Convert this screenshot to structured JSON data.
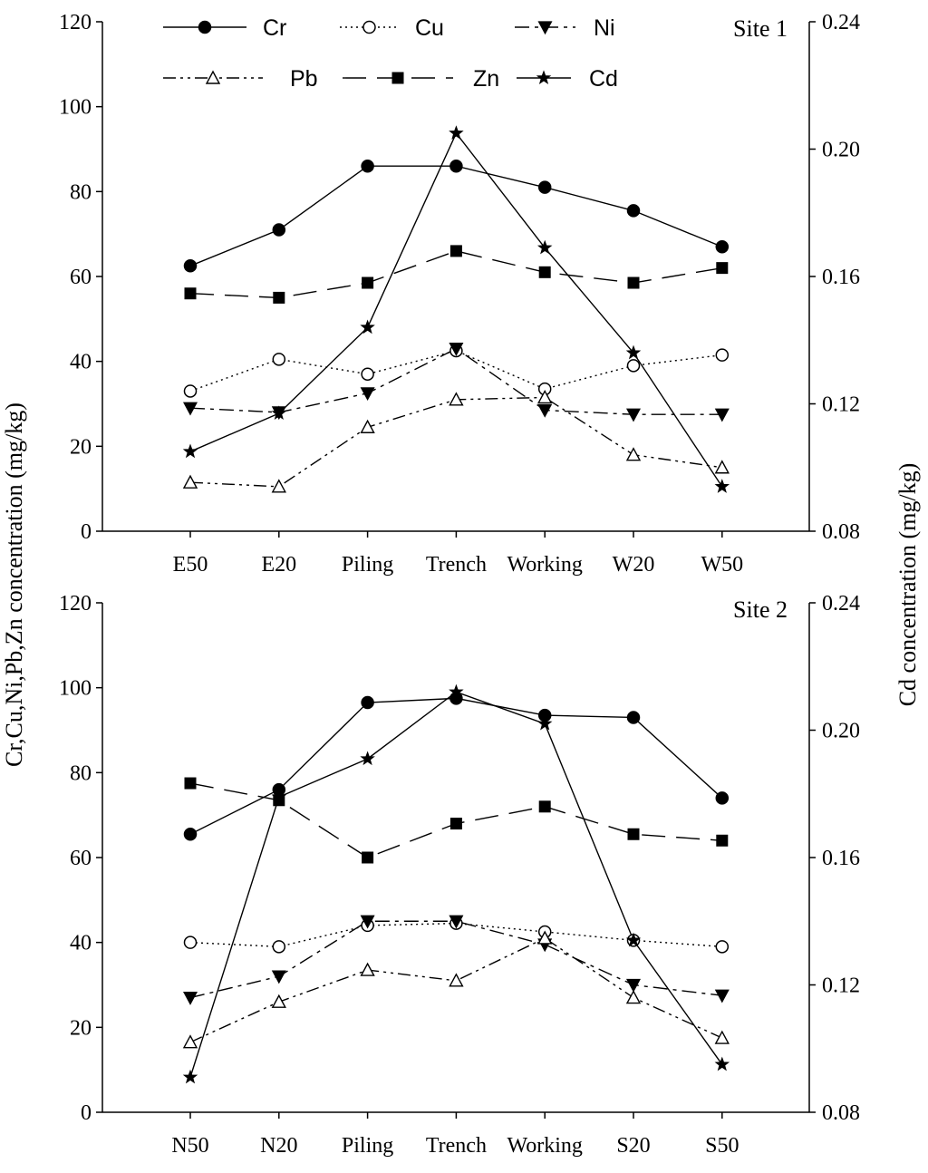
{
  "chart_data": [
    {
      "type": "line",
      "title": "Site 1",
      "categories": [
        "E50",
        "E20",
        "Piling",
        "Trench",
        "Working",
        "W20",
        "W50"
      ],
      "ylabel": "Cr,Cu,Ni,Pb,Zn concentration (mg/kg)",
      "y2label": "Cd concentration (mg/kg)",
      "ylim": [
        0,
        120
      ],
      "yticks": [
        0,
        20,
        40,
        60,
        80,
        100,
        120
      ],
      "y2lim": [
        0.08,
        0.24
      ],
      "y2ticks": [
        "0.08",
        "0.12",
        "0.16",
        "0.20",
        "0.24"
      ],
      "grid": false,
      "series": [
        {
          "name": "Cr",
          "axis": "left",
          "values": [
            62.5,
            71,
            86,
            86,
            81,
            75.5,
            67
          ]
        },
        {
          "name": "Cu",
          "axis": "left",
          "values": [
            33,
            40.5,
            37,
            42.5,
            33.5,
            39,
            41.5
          ]
        },
        {
          "name": "Ni",
          "axis": "left",
          "values": [
            29,
            28,
            32.5,
            43,
            28.5,
            27.5,
            27.5
          ]
        },
        {
          "name": "Pb",
          "axis": "left",
          "values": [
            11.5,
            10.5,
            24.5,
            31,
            31.5,
            18,
            15
          ]
        },
        {
          "name": "Zn",
          "axis": "left",
          "values": [
            56,
            55,
            58.5,
            66,
            61,
            58.5,
            62
          ]
        },
        {
          "name": "Cd",
          "axis": "right",
          "values": [
            0.105,
            0.117,
            0.144,
            0.205,
            0.169,
            0.136,
            0.094
          ]
        }
      ]
    },
    {
      "type": "line",
      "title": "Site 2",
      "categories": [
        "N50",
        "N20",
        "Piling",
        "Trench",
        "Working",
        "S20",
        "S50"
      ],
      "ylabel": "Cr,Cu,Ni,Pb,Zn concentration (mg/kg)",
      "y2label": "Cd concentration (mg/kg)",
      "ylim": [
        0,
        120
      ],
      "yticks": [
        0,
        20,
        40,
        60,
        80,
        100,
        120
      ],
      "y2lim": [
        0.08,
        0.24
      ],
      "y2ticks": [
        "0.08",
        "0.12",
        "0.16",
        "0.20",
        "0.24"
      ],
      "grid": false,
      "series": [
        {
          "name": "Cr",
          "axis": "left",
          "values": [
            65.5,
            76,
            96.5,
            97.5,
            93.5,
            93,
            74
          ]
        },
        {
          "name": "Cu",
          "axis": "left",
          "values": [
            40,
            39,
            44,
            44.5,
            42.5,
            40.5,
            39
          ]
        },
        {
          "name": "Ni",
          "axis": "left",
          "values": [
            27,
            32,
            45,
            45,
            39.5,
            30,
            27.5
          ]
        },
        {
          "name": "Pb",
          "axis": "left",
          "values": [
            16.5,
            26,
            33.5,
            31,
            41,
            27,
            17.5
          ]
        },
        {
          "name": "Zn",
          "axis": "left",
          "values": [
            77.5,
            73.5,
            60,
            68,
            72,
            65.5,
            64
          ]
        },
        {
          "name": "Cd",
          "axis": "right",
          "values": [
            0.091,
            0.179,
            0.191,
            0.212,
            0.202,
            0.134,
            0.095
          ]
        }
      ]
    }
  ],
  "legend": {
    "placement": "top",
    "entries": [
      "Cr",
      "Cu",
      "Ni",
      "Pb",
      "Zn",
      "Cd"
    ]
  },
  "shared_ylabel": "Cr,Cu,Ni,Pb,Zn concentration (mg/kg)",
  "shared_y2label": "Cd concentration (mg/kg)",
  "colors": {
    "ink": "#000000",
    "background": "#ffffff"
  }
}
